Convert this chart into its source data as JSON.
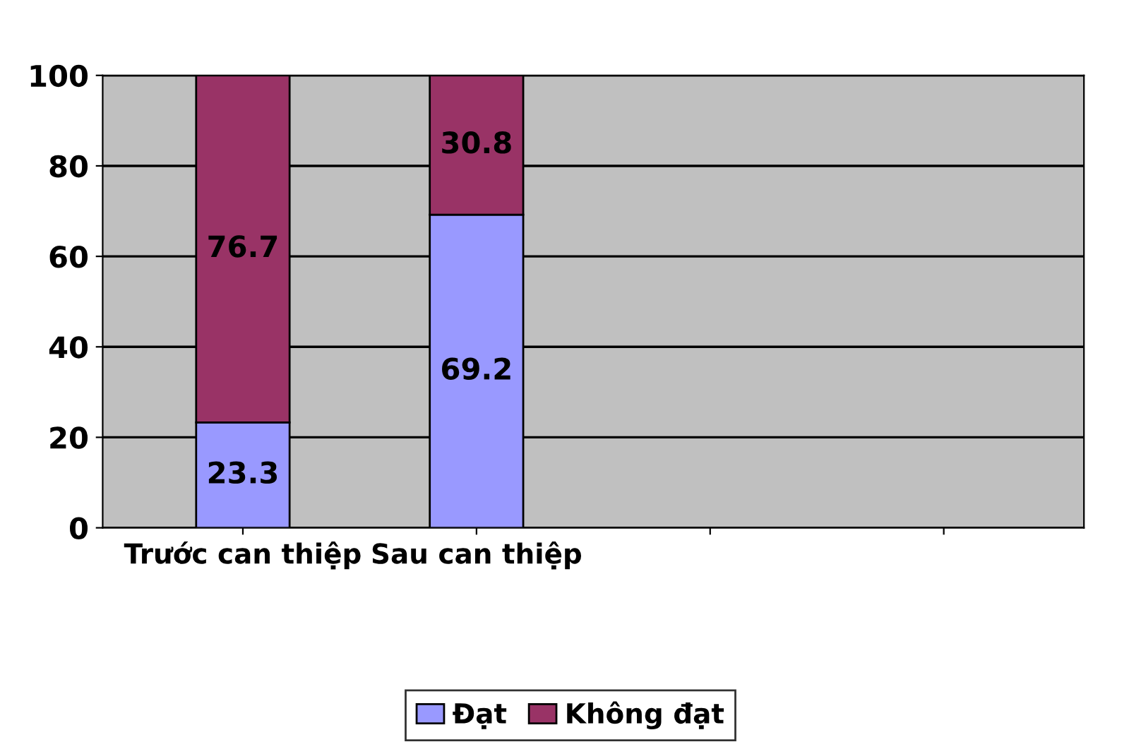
{
  "chart_data": {
    "type": "bar",
    "stacked": true,
    "categories": [
      "Trước can thiệp",
      "Sau can thiệp",
      null,
      null
    ],
    "series": [
      {
        "name": "Đạt",
        "color": "#9999ff",
        "values": [
          23.3,
          69.2,
          null,
          null
        ]
      },
      {
        "name": "Không đạt",
        "color": "#993366",
        "values": [
          76.7,
          30.8,
          null,
          null
        ]
      }
    ],
    "ylim": [
      0,
      100
    ],
    "yticks": [
      0,
      20,
      40,
      60,
      80,
      100
    ],
    "grid": "y",
    "legend": "bottom",
    "data_labels": true
  }
}
